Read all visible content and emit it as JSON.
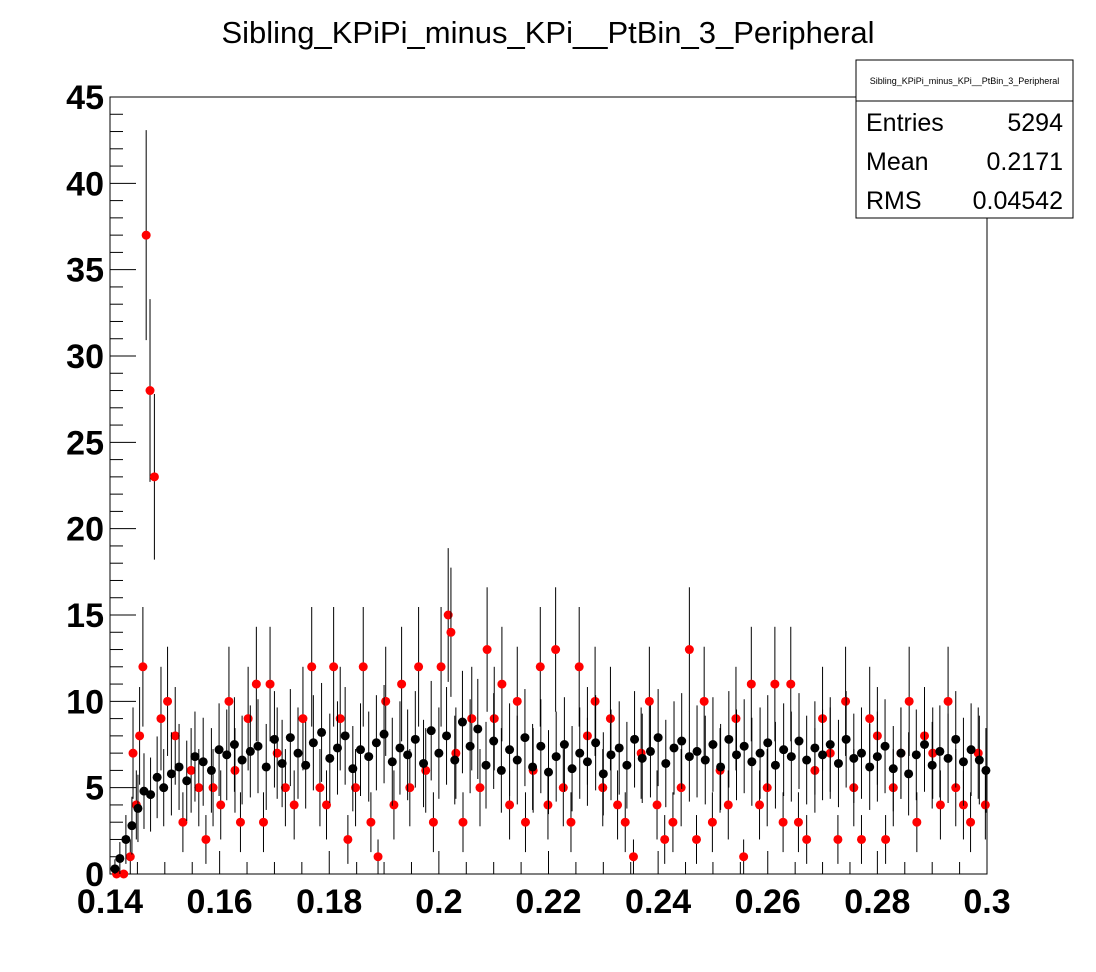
{
  "chart_data": {
    "type": "scatter",
    "title": "Sibling_KPiPi_minus_KPi__PtBin_3_Peripheral",
    "xlabel": "",
    "ylabel": "",
    "xlim": [
      0.14,
      0.3
    ],
    "ylim": [
      0,
      45
    ],
    "grid": false,
    "x_ticks": [
      0.14,
      0.16,
      0.18,
      0.2,
      0.22,
      0.24,
      0.26,
      0.28,
      0.3
    ],
    "x_tick_labels": [
      "0.14",
      "0.16",
      "0.18",
      "0.2",
      "0.22",
      "0.24",
      "0.26",
      "0.28",
      "0.3"
    ],
    "y_ticks": [
      0,
      5,
      10,
      15,
      20,
      25,
      30,
      35,
      40,
      45
    ],
    "y_tick_labels": [
      "0",
      "5",
      "10",
      "15",
      "20",
      "25",
      "30",
      "35",
      "40",
      "45"
    ],
    "series": [
      {
        "color": "#ff0000",
        "x": [
          0.1412,
          0.1425,
          0.1437,
          0.1442,
          0.1448,
          0.1454,
          0.146,
          0.1466,
          0.1473,
          0.1481,
          0.1493,
          0.1505,
          0.1519,
          0.1533,
          0.1548,
          0.1562,
          0.1575,
          0.1588,
          0.1602,
          0.1617,
          0.1628,
          0.1638,
          0.1652,
          0.1667,
          0.168,
          0.1692,
          0.1705,
          0.172,
          0.1736,
          0.1752,
          0.1768,
          0.1783,
          0.1795,
          0.1808,
          0.182,
          0.1834,
          0.1848,
          0.1862,
          0.1876,
          0.1889,
          0.1903,
          0.1918,
          0.1932,
          0.1947,
          0.1963,
          0.1976,
          0.199,
          0.2004,
          0.2017,
          0.2022,
          0.2031,
          0.2044,
          0.206,
          0.2075,
          0.2088,
          0.2101,
          0.2115,
          0.2129,
          0.2143,
          0.2158,
          0.2172,
          0.2185,
          0.2199,
          0.2213,
          0.2227,
          0.2241,
          0.2256,
          0.2271,
          0.2285,
          0.2299,
          0.2313,
          0.2326,
          0.234,
          0.2355,
          0.2369,
          0.2384,
          0.2398,
          0.2412,
          0.2427,
          0.2442,
          0.2457,
          0.247,
          0.2484,
          0.2499,
          0.2513,
          0.2528,
          0.2542,
          0.2556,
          0.257,
          0.2585,
          0.2599,
          0.2613,
          0.2628,
          0.2642,
          0.2656,
          0.2671,
          0.2686,
          0.27,
          0.2714,
          0.2728,
          0.2742,
          0.2757,
          0.2771,
          0.2786,
          0.28,
          0.2815,
          0.2829,
          0.2843,
          0.2858,
          0.2872,
          0.2886,
          0.2901,
          0.2915,
          0.2929,
          0.2943,
          0.2957,
          0.297,
          0.2984,
          0.2997
        ],
        "y": [
          0,
          0,
          1,
          7,
          4,
          8,
          12,
          37,
          28,
          23,
          9,
          10,
          8,
          3,
          6,
          5,
          2,
          5,
          4,
          10,
          6,
          3,
          9,
          11,
          3,
          11,
          7,
          5,
          4,
          9,
          12,
          5,
          4,
          12,
          9,
          2,
          5,
          12,
          3,
          1,
          10,
          4,
          11,
          5,
          12,
          6,
          3,
          12,
          15,
          14,
          7,
          3,
          9,
          5,
          13,
          9,
          11,
          4,
          10,
          3,
          6,
          12,
          4,
          13,
          5,
          3,
          12,
          8,
          10,
          5,
          9,
          4,
          3,
          1,
          7,
          10,
          4,
          2,
          3,
          5,
          13,
          2,
          10,
          3,
          6,
          4,
          9,
          1,
          11,
          4,
          5,
          11,
          3,
          11,
          3,
          2,
          6,
          9,
          7,
          2,
          10,
          5,
          2,
          9,
          8,
          2,
          5,
          7,
          10,
          3,
          8,
          7,
          4,
          10,
          5,
          4,
          3,
          7,
          4
        ]
      },
      {
        "color": "#000000",
        "x": [
          0.1409,
          0.1418,
          0.1429,
          0.144,
          0.1451,
          0.1462,
          0.1474,
          0.1486,
          0.1498,
          0.1512,
          0.1526,
          0.154,
          0.1555,
          0.157,
          0.1585,
          0.1599,
          0.1613,
          0.1627,
          0.1641,
          0.1656,
          0.167,
          0.1685,
          0.17,
          0.1714,
          0.1729,
          0.1743,
          0.1757,
          0.1771,
          0.1786,
          0.1801,
          0.1815,
          0.1829,
          0.1843,
          0.1857,
          0.1872,
          0.1886,
          0.19,
          0.1915,
          0.1929,
          0.1943,
          0.1957,
          0.1972,
          0.1986,
          0.2,
          0.2014,
          0.2029,
          0.2043,
          0.2057,
          0.2071,
          0.2086,
          0.21,
          0.2114,
          0.2129,
          0.2143,
          0.2157,
          0.2171,
          0.2186,
          0.22,
          0.2214,
          0.2229,
          0.2243,
          0.2257,
          0.2271,
          0.2286,
          0.23,
          0.2314,
          0.2329,
          0.2343,
          0.2357,
          0.2371,
          0.2386,
          0.24,
          0.2414,
          0.2429,
          0.2443,
          0.2457,
          0.2471,
          0.2486,
          0.25,
          0.2514,
          0.2529,
          0.2543,
          0.2557,
          0.2571,
          0.2586,
          0.26,
          0.2614,
          0.2629,
          0.2643,
          0.2657,
          0.2671,
          0.2686,
          0.27,
          0.2714,
          0.2729,
          0.2743,
          0.2757,
          0.2771,
          0.2786,
          0.28,
          0.2814,
          0.2829,
          0.2843,
          0.2857,
          0.2871,
          0.2886,
          0.29,
          0.2914,
          0.2929,
          0.2943,
          0.2957,
          0.2971,
          0.2986,
          0.2998
        ],
        "y": [
          0.3,
          0.9,
          2.0,
          2.8,
          3.8,
          4.8,
          4.6,
          5.6,
          5.0,
          5.8,
          6.2,
          5.4,
          6.8,
          6.5,
          6.0,
          7.2,
          6.9,
          7.5,
          6.6,
          7.1,
          7.4,
          6.2,
          7.8,
          6.4,
          7.9,
          7.0,
          6.3,
          7.6,
          8.2,
          6.7,
          7.3,
          8.0,
          6.1,
          7.2,
          6.8,
          7.6,
          8.1,
          6.5,
          7.3,
          6.9,
          7.8,
          6.4,
          8.3,
          7.0,
          8.0,
          6.6,
          8.8,
          7.4,
          8.4,
          6.3,
          7.7,
          6.0,
          7.2,
          6.6,
          7.9,
          6.2,
          7.4,
          5.9,
          6.8,
          7.5,
          6.1,
          7.0,
          6.5,
          7.6,
          5.8,
          6.9,
          7.3,
          6.3,
          7.8,
          6.7,
          7.1,
          7.9,
          6.4,
          7.3,
          7.7,
          6.8,
          7.1,
          6.6,
          7.5,
          6.2,
          7.8,
          6.9,
          7.4,
          6.5,
          7.0,
          7.6,
          6.3,
          7.2,
          6.8,
          7.7,
          6.6,
          7.3,
          6.9,
          7.5,
          6.4,
          7.8,
          6.7,
          7.0,
          6.2,
          6.8,
          7.4,
          6.1,
          7.0,
          5.8,
          6.9,
          7.5,
          6.3,
          7.1,
          6.7,
          7.8,
          6.5,
          7.2,
          6.6,
          6.0
        ]
      }
    ]
  },
  "stats_box": {
    "header": "Sibling_KPiPi_minus_KPi__PtBin_3_Peripheral",
    "rows": [
      {
        "label": "Entries",
        "value": "5294"
      },
      {
        "label": "Mean",
        "value": "0.2171"
      },
      {
        "label": "RMS",
        "value": "0.04542"
      }
    ]
  }
}
